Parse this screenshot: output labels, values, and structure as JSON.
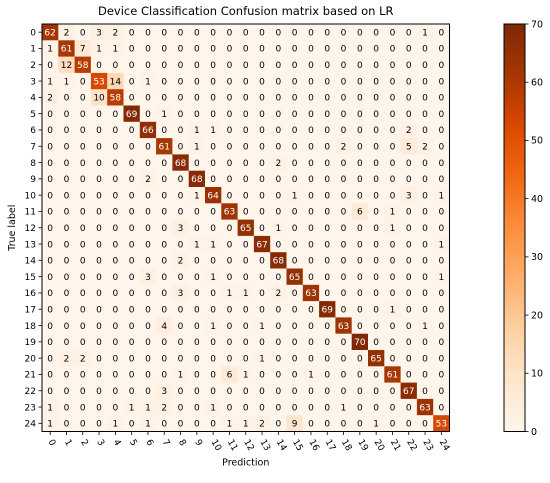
{
  "chart_data": {
    "type": "heatmap",
    "title": "Device Classification Confusion matrix based on LR",
    "xlabel": "Prediction",
    "ylabel": "True label",
    "x_labels": [
      "0",
      "1",
      "2",
      "3",
      "4",
      "5",
      "6",
      "7",
      "8",
      "9",
      "10",
      "11",
      "12",
      "13",
      "14",
      "15",
      "16",
      "17",
      "18",
      "19",
      "20",
      "21",
      "22",
      "23",
      "24"
    ],
    "y_labels": [
      "0",
      "1",
      "2",
      "3",
      "4",
      "5",
      "6",
      "7",
      "8",
      "9",
      "10",
      "11",
      "12",
      "13",
      "14",
      "15",
      "16",
      "17",
      "18",
      "19",
      "20",
      "21",
      "22",
      "23",
      "24"
    ],
    "matrix": [
      [
        62,
        2,
        0,
        3,
        2,
        0,
        0,
        0,
        0,
        0,
        0,
        0,
        0,
        0,
        0,
        0,
        0,
        0,
        0,
        0,
        0,
        0,
        0,
        1,
        0
      ],
      [
        1,
        61,
        7,
        1,
        1,
        0,
        0,
        0,
        0,
        0,
        0,
        0,
        0,
        0,
        0,
        0,
        0,
        0,
        0,
        0,
        0,
        0,
        0,
        0,
        0
      ],
      [
        0,
        12,
        58,
        0,
        0,
        0,
        0,
        0,
        0,
        0,
        0,
        0,
        0,
        0,
        0,
        0,
        0,
        0,
        0,
        0,
        0,
        0,
        0,
        0,
        0
      ],
      [
        1,
        1,
        0,
        53,
        14,
        0,
        1,
        0,
        0,
        0,
        0,
        0,
        0,
        0,
        0,
        0,
        0,
        0,
        0,
        0,
        0,
        0,
        0,
        0,
        0
      ],
      [
        2,
        0,
        0,
        10,
        58,
        0,
        0,
        0,
        0,
        0,
        0,
        0,
        0,
        0,
        0,
        0,
        0,
        0,
        0,
        0,
        0,
        0,
        0,
        0,
        0
      ],
      [
        0,
        0,
        0,
        0,
        0,
        69,
        0,
        1,
        0,
        0,
        0,
        0,
        0,
        0,
        0,
        0,
        0,
        0,
        0,
        0,
        0,
        0,
        0,
        0,
        0
      ],
      [
        0,
        0,
        0,
        0,
        0,
        0,
        66,
        0,
        0,
        1,
        1,
        0,
        0,
        0,
        0,
        0,
        0,
        0,
        0,
        0,
        0,
        0,
        2,
        0,
        0
      ],
      [
        0,
        0,
        0,
        0,
        0,
        0,
        0,
        61,
        0,
        1,
        0,
        0,
        0,
        0,
        0,
        0,
        0,
        0,
        2,
        0,
        0,
        0,
        5,
        2,
        0
      ],
      [
        0,
        0,
        0,
        0,
        0,
        0,
        0,
        0,
        68,
        0,
        0,
        0,
        0,
        0,
        2,
        0,
        0,
        0,
        0,
        0,
        0,
        0,
        0,
        0,
        0
      ],
      [
        0,
        0,
        0,
        0,
        0,
        0,
        2,
        0,
        0,
        68,
        0,
        0,
        0,
        0,
        0,
        0,
        0,
        0,
        0,
        0,
        0,
        0,
        0,
        0,
        0
      ],
      [
        0,
        0,
        0,
        0,
        0,
        0,
        0,
        0,
        0,
        1,
        64,
        0,
        0,
        0,
        0,
        1,
        0,
        0,
        0,
        0,
        0,
        0,
        3,
        0,
        1
      ],
      [
        0,
        0,
        0,
        0,
        0,
        0,
        0,
        0,
        0,
        0,
        0,
        63,
        0,
        0,
        0,
        0,
        0,
        0,
        0,
        6,
        0,
        1,
        0,
        0,
        0
      ],
      [
        0,
        0,
        0,
        0,
        0,
        0,
        0,
        0,
        3,
        0,
        0,
        0,
        65,
        0,
        1,
        0,
        0,
        0,
        0,
        0,
        0,
        1,
        0,
        0,
        0
      ],
      [
        0,
        0,
        0,
        0,
        0,
        0,
        0,
        0,
        0,
        1,
        1,
        0,
        0,
        67,
        0,
        0,
        0,
        0,
        0,
        0,
        0,
        0,
        0,
        0,
        1
      ],
      [
        0,
        0,
        0,
        0,
        0,
        0,
        0,
        0,
        2,
        0,
        0,
        0,
        0,
        0,
        68,
        0,
        0,
        0,
        0,
        0,
        0,
        0,
        0,
        0,
        0
      ],
      [
        0,
        0,
        0,
        0,
        0,
        0,
        3,
        0,
        0,
        0,
        1,
        0,
        0,
        0,
        0,
        65,
        0,
        0,
        0,
        0,
        0,
        0,
        0,
        0,
        1
      ],
      [
        0,
        0,
        0,
        0,
        0,
        0,
        0,
        0,
        3,
        0,
        0,
        1,
        1,
        0,
        2,
        0,
        63,
        0,
        0,
        0,
        0,
        0,
        0,
        0,
        0
      ],
      [
        0,
        0,
        0,
        0,
        0,
        0,
        0,
        0,
        0,
        0,
        0,
        0,
        0,
        0,
        0,
        0,
        0,
        69,
        0,
        0,
        0,
        1,
        0,
        0,
        0
      ],
      [
        0,
        0,
        0,
        0,
        0,
        0,
        0,
        4,
        0,
        0,
        1,
        0,
        0,
        1,
        0,
        0,
        0,
        0,
        63,
        0,
        0,
        0,
        0,
        1,
        0
      ],
      [
        0,
        0,
        0,
        0,
        0,
        0,
        0,
        0,
        0,
        0,
        0,
        0,
        0,
        0,
        0,
        0,
        0,
        0,
        0,
        70,
        0,
        0,
        0,
        0,
        0
      ],
      [
        0,
        2,
        2,
        0,
        0,
        0,
        0,
        0,
        0,
        0,
        0,
        0,
        0,
        1,
        0,
        0,
        0,
        0,
        0,
        0,
        65,
        0,
        0,
        0,
        0
      ],
      [
        0,
        0,
        0,
        0,
        0,
        0,
        0,
        0,
        1,
        0,
        0,
        6,
        1,
        0,
        0,
        0,
        1,
        0,
        0,
        0,
        0,
        61,
        0,
        0,
        0
      ],
      [
        0,
        0,
        0,
        0,
        0,
        0,
        0,
        3,
        0,
        0,
        0,
        0,
        0,
        0,
        0,
        0,
        0,
        0,
        0,
        0,
        0,
        0,
        67,
        0,
        0
      ],
      [
        1,
        0,
        0,
        0,
        0,
        1,
        1,
        2,
        0,
        0,
        1,
        0,
        0,
        0,
        0,
        0,
        0,
        0,
        1,
        0,
        0,
        0,
        0,
        63,
        0
      ],
      [
        1,
        0,
        0,
        0,
        1,
        0,
        1,
        0,
        0,
        0,
        0,
        1,
        1,
        2,
        0,
        9,
        0,
        0,
        0,
        0,
        1,
        0,
        0,
        0,
        53
      ]
    ],
    "colormap": "Oranges",
    "vmin": 0,
    "vmax": 70,
    "colorbar_ticks": [
      "0",
      "10",
      "20",
      "30",
      "40",
      "50",
      "60",
      "70"
    ],
    "colorbar_tick_values": [
      0,
      10,
      20,
      30,
      40,
      50,
      60,
      70
    ],
    "text_color_threshold": 35
  }
}
